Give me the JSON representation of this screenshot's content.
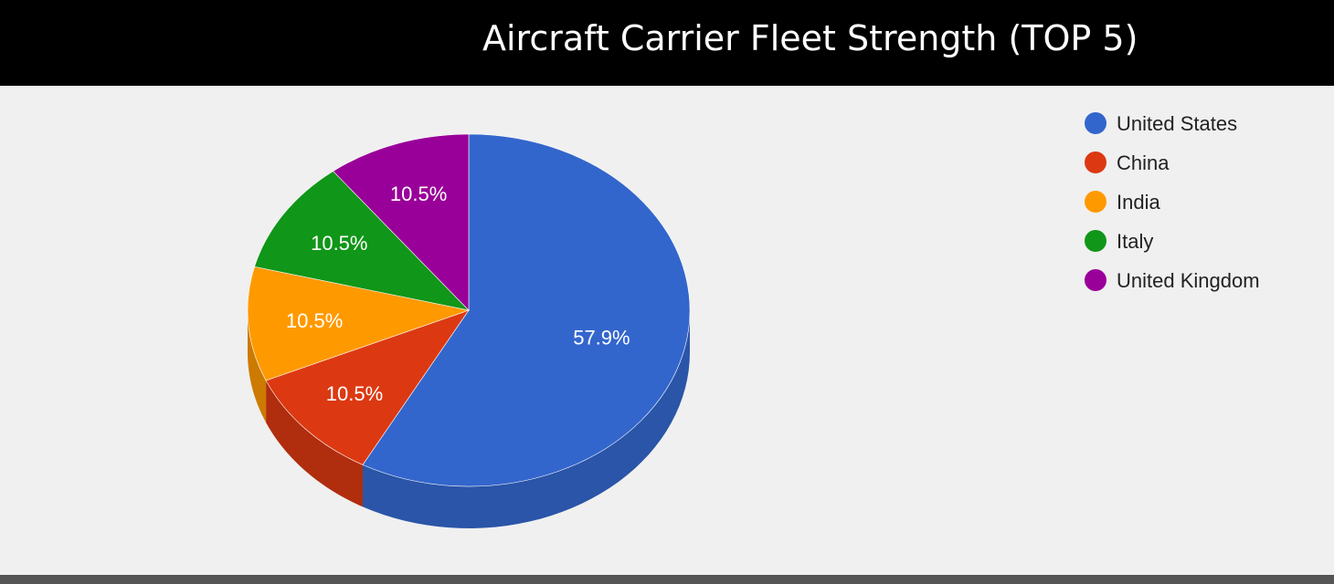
{
  "chart_data": {
    "type": "pie",
    "title": "Aircraft Carrier Fleet Strength (TOP 5)",
    "legend_position": "top-right",
    "style": "3d",
    "categories": [
      "United States",
      "China",
      "India",
      "Italy",
      "United Kingdom"
    ],
    "values": [
      57.9,
      10.5,
      10.5,
      10.5,
      10.5
    ],
    "value_labels": [
      "57.9%",
      "10.5%",
      "10.5%",
      "10.5%",
      "10.5%"
    ],
    "colors": [
      "#3366cc",
      "#dc3912",
      "#ff9900",
      "#109618",
      "#990099"
    ],
    "side_colors": [
      "#2a55a8",
      "#b02d0e",
      "#cc7a00",
      "#0c7812",
      "#7a007a"
    ]
  }
}
